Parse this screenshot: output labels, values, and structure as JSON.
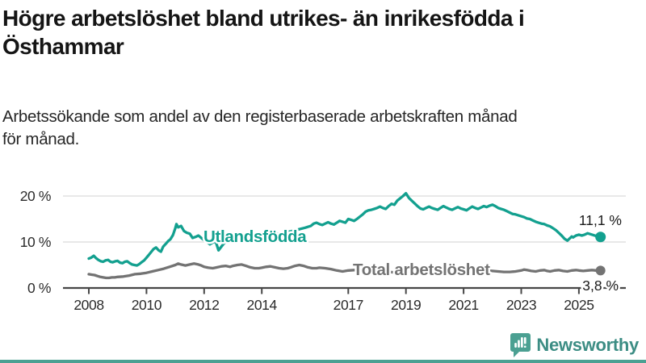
{
  "page": {
    "background": "#ffffff",
    "accent_bar_color": "#4ba092"
  },
  "header": {
    "title_line1": "Högre arbetslöshet bland utrikes- än inrikesfödda i",
    "title_line2": "Östhammar",
    "subtitle_line1": "Arbetssökande som andel av den registerbaserade arbetskraften månad",
    "subtitle_line2": "för månad."
  },
  "footer": {
    "brand": "Newsworthy",
    "logo_icon": "bar-chart-speech-bubble-icon",
    "brand_text_color": "#3c8d84",
    "logo_color": "#4ba092"
  },
  "chart_data": {
    "type": "line",
    "title": "Högre arbetslöshet bland utrikes- än inrikesfödda i Östhammar",
    "subtitle": "Arbetssökande som andel av den registerbaserade arbetskraften månad för månad.",
    "xlabel": "",
    "ylabel": "",
    "x_ticks": [
      2008,
      2010,
      2012,
      2014,
      2017,
      2019,
      2021,
      2023,
      2025
    ],
    "y_ticks": [
      0,
      10,
      20
    ],
    "y_tick_labels": [
      "0 %",
      "10 %",
      "20 %"
    ],
    "xlim": [
      2007.9,
      2026.2
    ],
    "ylim": [
      0,
      22
    ],
    "grid": true,
    "grid_color": "#d9d9d9",
    "axis_color": "#474747",
    "text_color": "#2b2b2b",
    "value_label_color": "#1a1a1a",
    "legend_position": "inline-labels",
    "series": [
      {
        "name": "Utlandsfödda",
        "color": "#13a08f",
        "end_value": 11.1,
        "end_label": "11,1 %",
        "points": [
          [
            2008.0,
            6.4
          ],
          [
            2008.08,
            6.6
          ],
          [
            2008.17,
            7.0
          ],
          [
            2008.25,
            6.5
          ],
          [
            2008.33,
            6.1
          ],
          [
            2008.42,
            5.8
          ],
          [
            2008.5,
            5.7
          ],
          [
            2008.58,
            6.0
          ],
          [
            2008.67,
            6.1
          ],
          [
            2008.75,
            5.7
          ],
          [
            2008.83,
            5.6
          ],
          [
            2008.92,
            5.8
          ],
          [
            2009.0,
            5.9
          ],
          [
            2009.08,
            5.5
          ],
          [
            2009.17,
            5.4
          ],
          [
            2009.25,
            5.7
          ],
          [
            2009.33,
            5.8
          ],
          [
            2009.42,
            5.4
          ],
          [
            2009.5,
            5.1
          ],
          [
            2009.58,
            5.0
          ],
          [
            2009.67,
            4.9
          ],
          [
            2009.75,
            5.2
          ],
          [
            2009.83,
            5.6
          ],
          [
            2009.92,
            6.0
          ],
          [
            2010.0,
            6.6
          ],
          [
            2010.08,
            7.2
          ],
          [
            2010.17,
            7.9
          ],
          [
            2010.25,
            8.5
          ],
          [
            2010.33,
            8.8
          ],
          [
            2010.42,
            8.2
          ],
          [
            2010.5,
            7.9
          ],
          [
            2010.58,
            9.0
          ],
          [
            2010.67,
            9.6
          ],
          [
            2010.75,
            10.2
          ],
          [
            2010.83,
            10.6
          ],
          [
            2010.92,
            11.5
          ],
          [
            2011.0,
            13.0
          ],
          [
            2011.04,
            13.9
          ],
          [
            2011.1,
            13.2
          ],
          [
            2011.2,
            13.5
          ],
          [
            2011.3,
            12.4
          ],
          [
            2011.4,
            12.0
          ],
          [
            2011.5,
            11.8
          ],
          [
            2011.6,
            10.9
          ],
          [
            2011.7,
            11.1
          ],
          [
            2011.8,
            11.4
          ],
          [
            2011.9,
            10.9
          ],
          [
            2012.0,
            10.4
          ],
          [
            2012.1,
            10.0
          ],
          [
            2012.2,
            9.5
          ],
          [
            2012.3,
            9.9
          ],
          [
            2012.4,
            10.1
          ],
          [
            2012.5,
            8.2
          ],
          [
            2012.6,
            9.0
          ],
          [
            2012.7,
            9.8
          ],
          [
            2012.8,
            10.1
          ],
          [
            2012.9,
            10.2
          ],
          [
            2013.0,
            10.3
          ],
          [
            2013.25,
            10.6
          ],
          [
            2013.5,
            10.8
          ],
          [
            2013.75,
            11.0
          ],
          [
            2014.0,
            11.2
          ],
          [
            2014.25,
            11.4
          ],
          [
            2014.5,
            11.7
          ],
          [
            2014.75,
            12.0
          ],
          [
            2015.0,
            12.3
          ],
          [
            2015.25,
            12.7
          ],
          [
            2015.5,
            13.1
          ],
          [
            2015.7,
            13.5
          ],
          [
            2015.8,
            14.0
          ],
          [
            2015.9,
            14.2
          ],
          [
            2016.0,
            13.9
          ],
          [
            2016.1,
            13.7
          ],
          [
            2016.2,
            14.0
          ],
          [
            2016.3,
            14.3
          ],
          [
            2016.4,
            14.0
          ],
          [
            2016.5,
            13.8
          ],
          [
            2016.6,
            14.2
          ],
          [
            2016.7,
            14.6
          ],
          [
            2016.8,
            14.4
          ],
          [
            2016.9,
            14.2
          ],
          [
            2017.0,
            15.0
          ],
          [
            2017.1,
            14.8
          ],
          [
            2017.2,
            14.6
          ],
          [
            2017.3,
            15.0
          ],
          [
            2017.4,
            15.5
          ],
          [
            2017.5,
            16.0
          ],
          [
            2017.6,
            16.6
          ],
          [
            2017.7,
            16.9
          ],
          [
            2017.8,
            17.0
          ],
          [
            2017.9,
            17.2
          ],
          [
            2018.0,
            17.4
          ],
          [
            2018.1,
            17.7
          ],
          [
            2018.2,
            17.4
          ],
          [
            2018.3,
            17.2
          ],
          [
            2018.4,
            17.8
          ],
          [
            2018.5,
            18.3
          ],
          [
            2018.6,
            18.1
          ],
          [
            2018.7,
            19.0
          ],
          [
            2018.8,
            19.5
          ],
          [
            2018.9,
            20.0
          ],
          [
            2019.0,
            20.6
          ],
          [
            2019.05,
            20.1
          ],
          [
            2019.1,
            19.6
          ],
          [
            2019.2,
            19.0
          ],
          [
            2019.3,
            18.4
          ],
          [
            2019.4,
            17.8
          ],
          [
            2019.5,
            17.3
          ],
          [
            2019.6,
            17.1
          ],
          [
            2019.7,
            17.4
          ],
          [
            2019.8,
            17.7
          ],
          [
            2019.9,
            17.4
          ],
          [
            2020.0,
            17.2
          ],
          [
            2020.1,
            17.0
          ],
          [
            2020.2,
            17.4
          ],
          [
            2020.3,
            17.8
          ],
          [
            2020.4,
            17.5
          ],
          [
            2020.5,
            17.2
          ],
          [
            2020.6,
            17.0
          ],
          [
            2020.7,
            17.3
          ],
          [
            2020.8,
            17.6
          ],
          [
            2020.9,
            17.3
          ],
          [
            2021.0,
            17.1
          ],
          [
            2021.1,
            16.9
          ],
          [
            2021.2,
            17.3
          ],
          [
            2021.3,
            17.7
          ],
          [
            2021.4,
            17.4
          ],
          [
            2021.5,
            17.2
          ],
          [
            2021.6,
            17.5
          ],
          [
            2021.7,
            17.8
          ],
          [
            2021.8,
            17.6
          ],
          [
            2021.9,
            17.9
          ],
          [
            2022.0,
            18.1
          ],
          [
            2022.1,
            17.8
          ],
          [
            2022.2,
            17.4
          ],
          [
            2022.3,
            17.2
          ],
          [
            2022.4,
            17.0
          ],
          [
            2022.5,
            16.7
          ],
          [
            2022.6,
            16.4
          ],
          [
            2022.7,
            16.1
          ],
          [
            2022.8,
            16.0
          ],
          [
            2022.9,
            15.8
          ],
          [
            2023.0,
            15.6
          ],
          [
            2023.1,
            15.4
          ],
          [
            2023.2,
            15.1
          ],
          [
            2023.3,
            15.0
          ],
          [
            2023.4,
            14.7
          ],
          [
            2023.5,
            14.4
          ],
          [
            2023.6,
            14.2
          ],
          [
            2023.7,
            14.0
          ],
          [
            2023.8,
            13.9
          ],
          [
            2023.9,
            13.6
          ],
          [
            2024.0,
            13.4
          ],
          [
            2024.1,
            13.0
          ],
          [
            2024.2,
            12.6
          ],
          [
            2024.3,
            12.0
          ],
          [
            2024.4,
            11.4
          ],
          [
            2024.5,
            10.7
          ],
          [
            2024.6,
            10.3
          ],
          [
            2024.7,
            10.9
          ],
          [
            2024.75,
            11.2
          ],
          [
            2024.8,
            11.0
          ],
          [
            2024.9,
            11.4
          ],
          [
            2025.0,
            11.6
          ],
          [
            2025.1,
            11.4
          ],
          [
            2025.2,
            11.6
          ],
          [
            2025.3,
            11.9
          ],
          [
            2025.4,
            11.7
          ],
          [
            2025.5,
            11.5
          ],
          [
            2025.6,
            11.3
          ],
          [
            2025.7,
            11.2
          ],
          [
            2025.75,
            11.1
          ]
        ]
      },
      {
        "name": "Total arbetslöshet",
        "color": "#737373",
        "end_value": 3.8,
        "end_label": "3,8 %",
        "points": [
          [
            2008.0,
            3.0
          ],
          [
            2008.1,
            2.9
          ],
          [
            2008.2,
            2.8
          ],
          [
            2008.3,
            2.6
          ],
          [
            2008.4,
            2.4
          ],
          [
            2008.5,
            2.3
          ],
          [
            2008.6,
            2.2
          ],
          [
            2008.7,
            2.2
          ],
          [
            2008.8,
            2.3
          ],
          [
            2008.9,
            2.3
          ],
          [
            2009.0,
            2.4
          ],
          [
            2009.2,
            2.5
          ],
          [
            2009.4,
            2.7
          ],
          [
            2009.6,
            3.0
          ],
          [
            2009.8,
            3.1
          ],
          [
            2010.0,
            3.3
          ],
          [
            2010.2,
            3.6
          ],
          [
            2010.4,
            3.9
          ],
          [
            2010.6,
            4.2
          ],
          [
            2010.8,
            4.6
          ],
          [
            2011.0,
            5.0
          ],
          [
            2011.1,
            5.3
          ],
          [
            2011.2,
            5.1
          ],
          [
            2011.35,
            4.9
          ],
          [
            2011.5,
            5.1
          ],
          [
            2011.65,
            5.3
          ],
          [
            2011.8,
            5.1
          ],
          [
            2011.9,
            4.9
          ],
          [
            2012.0,
            4.6
          ],
          [
            2012.15,
            4.4
          ],
          [
            2012.3,
            4.3
          ],
          [
            2012.45,
            4.5
          ],
          [
            2012.6,
            4.7
          ],
          [
            2012.75,
            4.8
          ],
          [
            2012.9,
            4.6
          ],
          [
            2013.0,
            4.8
          ],
          [
            2013.15,
            5.0
          ],
          [
            2013.3,
            5.1
          ],
          [
            2013.45,
            4.8
          ],
          [
            2013.6,
            4.5
          ],
          [
            2013.75,
            4.3
          ],
          [
            2013.9,
            4.3
          ],
          [
            2014.0,
            4.4
          ],
          [
            2014.15,
            4.6
          ],
          [
            2014.3,
            4.7
          ],
          [
            2014.45,
            4.5
          ],
          [
            2014.6,
            4.3
          ],
          [
            2014.75,
            4.2
          ],
          [
            2014.9,
            4.3
          ],
          [
            2015.0,
            4.5
          ],
          [
            2015.15,
            4.8
          ],
          [
            2015.3,
            5.0
          ],
          [
            2015.45,
            4.8
          ],
          [
            2015.6,
            4.5
          ],
          [
            2015.75,
            4.3
          ],
          [
            2015.9,
            4.3
          ],
          [
            2016.0,
            4.4
          ],
          [
            2016.2,
            4.3
          ],
          [
            2016.4,
            4.1
          ],
          [
            2016.6,
            3.8
          ],
          [
            2016.8,
            3.6
          ],
          [
            2017.0,
            3.8
          ],
          [
            2017.2,
            3.9
          ],
          [
            2017.4,
            3.7
          ],
          [
            2017.6,
            3.5
          ],
          [
            2017.8,
            3.6
          ],
          [
            2018.0,
            3.7
          ],
          [
            2018.2,
            3.6
          ],
          [
            2018.4,
            3.5
          ],
          [
            2018.6,
            3.4
          ],
          [
            2018.8,
            3.5
          ],
          [
            2019.0,
            3.6
          ],
          [
            2019.2,
            3.5
          ],
          [
            2019.4,
            3.4
          ],
          [
            2019.6,
            3.4
          ],
          [
            2019.8,
            3.5
          ],
          [
            2020.0,
            3.7
          ],
          [
            2020.2,
            4.2
          ],
          [
            2020.4,
            4.5
          ],
          [
            2020.6,
            4.4
          ],
          [
            2020.8,
            4.3
          ],
          [
            2021.0,
            4.2
          ],
          [
            2021.2,
            4.1
          ],
          [
            2021.4,
            4.0
          ],
          [
            2021.6,
            3.9
          ],
          [
            2021.8,
            3.8
          ],
          [
            2022.0,
            3.7
          ],
          [
            2022.2,
            3.6
          ],
          [
            2022.4,
            3.5
          ],
          [
            2022.6,
            3.5
          ],
          [
            2022.8,
            3.6
          ],
          [
            2023.0,
            3.8
          ],
          [
            2023.1,
            4.0
          ],
          [
            2023.2,
            3.9
          ],
          [
            2023.35,
            3.7
          ],
          [
            2023.5,
            3.6
          ],
          [
            2023.65,
            3.8
          ],
          [
            2023.8,
            3.9
          ],
          [
            2023.9,
            3.7
          ],
          [
            2024.0,
            3.6
          ],
          [
            2024.15,
            3.8
          ],
          [
            2024.3,
            3.9
          ],
          [
            2024.45,
            3.7
          ],
          [
            2024.6,
            3.6
          ],
          [
            2024.75,
            3.8
          ],
          [
            2024.9,
            3.9
          ],
          [
            2025.0,
            3.8
          ],
          [
            2025.15,
            3.7
          ],
          [
            2025.3,
            3.8
          ],
          [
            2025.45,
            3.9
          ],
          [
            2025.6,
            3.8
          ],
          [
            2025.75,
            3.8
          ]
        ]
      }
    ]
  }
}
